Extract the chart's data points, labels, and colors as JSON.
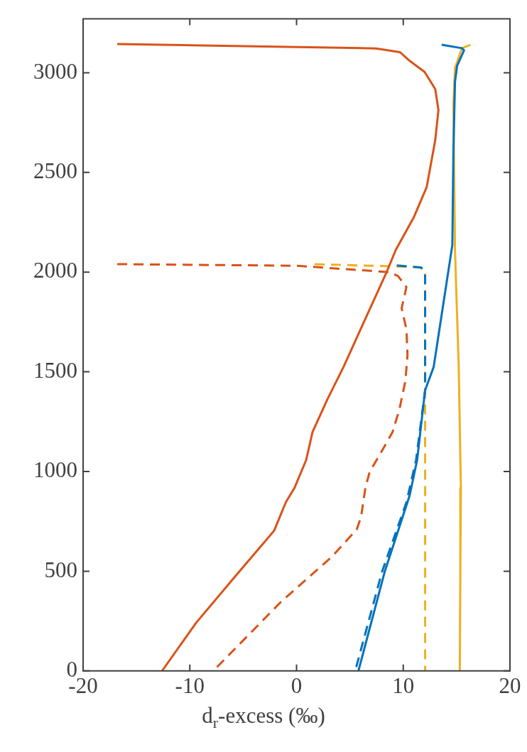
{
  "chart_data": {
    "type": "line",
    "xlabel": "d$_{r}$-excess (‰)",
    "xlim": [
      -20,
      20
    ],
    "xticks": [
      -20,
      -10,
      0,
      10,
      20
    ],
    "ylim": [
      0,
      3270
    ],
    "yticks": [
      0,
      500,
      1000,
      1500,
      2000,
      2500,
      3000
    ],
    "grid": false,
    "legend": false,
    "marker": "none",
    "series": [
      {
        "color": "#d95319",
        "line_style": "solid",
        "x": [
          -16.8,
          7.45,
          9.7,
          10.5,
          12.0,
          13.0,
          13.3,
          13.0,
          12.2,
          11.0,
          9.3,
          8.4,
          6.4,
          4.4,
          2.9,
          1.5,
          0.9,
          -0.2,
          -1.0,
          -2.1,
          -5.3,
          -9.4,
          -12.6
        ],
        "values": [
          3144,
          3122,
          3103,
          3064,
          3004,
          2918,
          2813,
          2662,
          2427,
          2276,
          2111,
          1995,
          1760,
          1524,
          1363,
          1198,
          1057,
          917,
          846,
          703,
          502,
          242,
          0
        ]
      },
      {
        "color": "#d95319",
        "line_style": "dashed",
        "x": [
          -16.8,
          0,
          8.65,
          9.5,
          10.3,
          9.85,
          10.3,
          10.4,
          10.2,
          9.65,
          9.0,
          8.0,
          6.85,
          6.45,
          6.05,
          5.65,
          3.3,
          -1.5,
          -7.8
        ],
        "values": [
          2040,
          2032,
          2000,
          1981,
          1925,
          1819,
          1714,
          1584,
          1454,
          1314,
          1198,
          1103,
          998,
          917,
          773,
          710,
          572,
          344,
          0
        ]
      },
      {
        "color": "#0072bd",
        "line_style": "solid",
        "x": [
          13.6,
          15.5,
          15.7,
          15.05,
          14.85,
          14.7,
          14.6,
          12.85,
          12.05,
          11.3,
          10.6,
          8.25,
          5.8
        ],
        "values": [
          3140,
          3123,
          3112,
          3035,
          2954,
          2603,
          2135,
          1524,
          1408,
          1057,
          880,
          495,
          0
        ]
      },
      {
        "color": "#0072bd",
        "line_style": "dashed",
        "x": [
          9.4,
          11.7,
          12.05,
          12.05,
          11.2,
          10.3,
          8.0,
          5.5
        ],
        "values": [
          2034,
          2023,
          1995,
          1408,
          1057,
          846,
          495,
          0
        ]
      },
      {
        "color": "#edb120",
        "line_style": "solid",
        "x": [
          16.3,
          15.5,
          14.85,
          14.7,
          14.85,
          15.2,
          15.4,
          15.35,
          15.3
        ],
        "values": [
          3140,
          3123,
          3024,
          2838,
          2111,
          1524,
          917,
          500,
          0
        ]
      },
      {
        "color": "#edb120",
        "line_style": "dashed",
        "x": [
          1.7,
          11.5,
          12.05,
          12.05
        ],
        "values": [
          2040,
          2025,
          2005,
          0
        ]
      }
    ]
  }
}
